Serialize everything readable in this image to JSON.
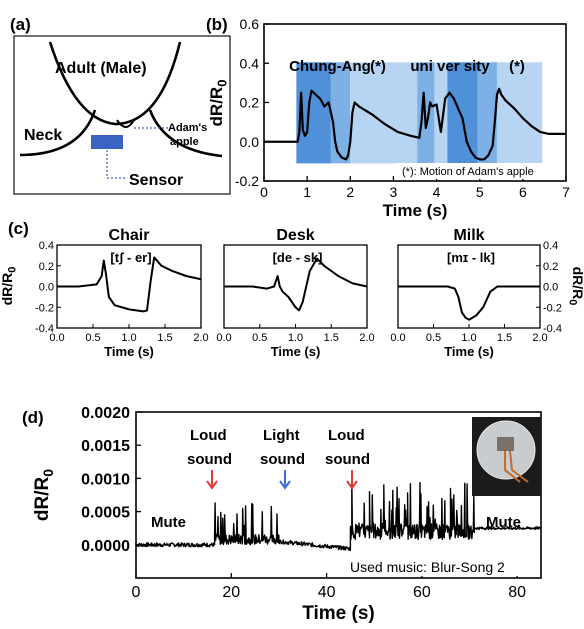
{
  "figure": {
    "panels": {
      "a": {
        "label": "(a)",
        "texts": {
          "adult": "Adult (Male)",
          "neck": "Neck",
          "adams": "Adam's",
          "apple": "apple",
          "sensor": "Sensor"
        }
      },
      "b": {
        "label": "(b)",
        "words": [
          "Chung-Ang",
          "(*)",
          "uni ver sity",
          "(*)"
        ],
        "note": "(*): Motion of Adam's apple"
      },
      "c": {
        "label": "(c)"
      },
      "d": {
        "label": "(d)",
        "annotations": {
          "loud1": [
            "Loud",
            "sound"
          ],
          "light": [
            "Light",
            "sound"
          ],
          "loud2": [
            "Loud",
            "sound"
          ],
          "mute_left": "Mute",
          "mute_right": "Mute",
          "music": "Used music: Blur-Song 2"
        },
        "colors": {
          "loud": "#e53935",
          "light": "#3f6fd8",
          "mute": "#7ab648"
        }
      }
    }
  },
  "chart_data": [
    {
      "panel": "b",
      "type": "line",
      "xlabel": "Time (s)",
      "ylabel": "dR/R0",
      "xlim": [
        0,
        7
      ],
      "ylim": [
        -0.2,
        0.6
      ],
      "xticks": [
        0,
        1,
        2,
        3,
        4,
        5,
        6,
        7
      ],
      "yticks": [
        -0.2,
        0.0,
        0.2,
        0.4,
        0.6
      ],
      "series": [
        {
          "x": [
            0,
            0.5,
            0.78,
            0.82,
            0.86,
            0.9,
            0.95,
            1.0,
            1.05,
            1.1,
            1.2,
            1.3,
            1.4,
            1.5,
            1.6,
            1.65,
            1.7,
            1.8,
            1.9,
            1.95,
            2.0,
            2.05,
            2.1,
            2.2,
            2.5,
            2.8,
            3.1,
            3.4,
            3.6,
            3.65,
            3.7,
            3.75,
            3.8,
            3.85,
            3.9,
            4.0,
            4.1,
            4.2,
            4.3,
            4.4,
            4.5,
            4.6,
            4.7,
            4.8,
            4.9,
            5.0,
            5.1,
            5.2,
            5.3,
            5.35,
            5.4,
            5.45,
            5.5,
            5.6,
            5.8,
            6.0,
            6.2,
            6.4,
            6.6,
            7.0
          ],
          "y": [
            0.0,
            0.0,
            0.0,
            0.05,
            0.25,
            0.06,
            0.03,
            0.05,
            0.2,
            0.26,
            0.24,
            0.22,
            0.18,
            0.2,
            0.1,
            0.0,
            -0.05,
            -0.08,
            -0.09,
            -0.07,
            0.0,
            0.15,
            0.2,
            0.18,
            0.14,
            0.09,
            0.05,
            0.03,
            0.02,
            0.1,
            0.25,
            0.07,
            0.12,
            0.2,
            0.18,
            0.19,
            0.05,
            0.22,
            0.25,
            0.22,
            0.17,
            0.12,
            0.0,
            -0.05,
            -0.08,
            -0.09,
            -0.09,
            -0.07,
            -0.02,
            0.1,
            0.24,
            0.27,
            0.24,
            0.21,
            0.17,
            0.12,
            0.08,
            0.05,
            0.04,
            0.04
          ]
        }
      ],
      "regions": [
        {
          "x": [
            0.75,
            1.55
          ],
          "shade": "dark"
        },
        {
          "x": [
            1.55,
            2.0
          ],
          "shade": "medium"
        },
        {
          "x": [
            2.0,
            3.55
          ],
          "shade": "light"
        },
        {
          "x": [
            3.55,
            3.95
          ],
          "shade": "medium"
        },
        {
          "x": [
            3.95,
            4.25
          ],
          "shade": "light"
        },
        {
          "x": [
            4.25,
            4.95
          ],
          "shade": "dark"
        },
        {
          "x": [
            4.95,
            5.4
          ],
          "shade": "medium"
        },
        {
          "x": [
            5.4,
            6.45
          ],
          "shade": "light"
        }
      ]
    },
    {
      "panel": "c1",
      "type": "line",
      "title": "Chair",
      "phonetic": "[tʃ    -    er]",
      "xlabel": "Time (s)",
      "ylabel": "dR/R0",
      "xlim": [
        0,
        2
      ],
      "ylim": [
        -0.4,
        0.4
      ],
      "xticks": [
        0.0,
        0.5,
        1.0,
        1.5,
        2.0
      ],
      "yticks": [
        -0.4,
        -0.2,
        0.0,
        0.2,
        0.4
      ],
      "series": [
        {
          "x": [
            0,
            0.3,
            0.55,
            0.62,
            0.65,
            0.68,
            0.72,
            0.8,
            0.9,
            1.0,
            1.1,
            1.2,
            1.25,
            1.3,
            1.35,
            1.45,
            1.6,
            1.8,
            2.0
          ],
          "y": [
            0.0,
            0.0,
            0.02,
            0.1,
            0.25,
            0.12,
            -0.1,
            -0.18,
            -0.2,
            -0.22,
            -0.23,
            -0.24,
            -0.23,
            0.05,
            0.28,
            0.2,
            0.15,
            0.1,
            0.07
          ]
        }
      ]
    },
    {
      "panel": "c2",
      "type": "line",
      "title": "Desk",
      "phonetic": "[de  -  sk]",
      "xlabel": "Time (s)",
      "xlim": [
        0,
        2
      ],
      "ylim": [
        -0.4,
        0.4
      ],
      "xticks": [
        0.0,
        0.5,
        1.0,
        1.5,
        2.0
      ],
      "series": [
        {
          "x": [
            0,
            0.4,
            0.6,
            0.7,
            0.75,
            0.78,
            0.82,
            0.9,
            1.0,
            1.05,
            1.1,
            1.2,
            1.3,
            1.4,
            1.6,
            1.8,
            2.0
          ],
          "y": [
            0.0,
            0.0,
            -0.02,
            0.0,
            0.1,
            0.0,
            -0.05,
            -0.1,
            -0.2,
            -0.23,
            -0.15,
            0.15,
            0.27,
            0.2,
            0.1,
            0.03,
            0.0
          ]
        }
      ]
    },
    {
      "panel": "c3",
      "type": "line",
      "title": "Milk",
      "phonetic": "[mɪ  -  lk]",
      "xlabel": "Time (s)",
      "ylabel": "dR/R0",
      "xlim": [
        0,
        2
      ],
      "ylim": [
        -0.4,
        0.4
      ],
      "xticks": [
        0.0,
        0.5,
        1.0,
        1.5,
        2.0
      ],
      "yticks": [
        -0.4,
        -0.2,
        0.0,
        0.2,
        0.4
      ],
      "series": [
        {
          "x": [
            0,
            0.5,
            0.7,
            0.8,
            0.85,
            0.9,
            0.95,
            1.0,
            1.1,
            1.2,
            1.3,
            1.4,
            1.6,
            1.8,
            2.0
          ],
          "y": [
            0.0,
            0.0,
            0.0,
            -0.02,
            -0.1,
            -0.25,
            -0.3,
            -0.32,
            -0.28,
            -0.2,
            -0.05,
            0.0,
            0.0,
            0.0,
            0.0
          ]
        }
      ]
    },
    {
      "panel": "d",
      "type": "line",
      "xlabel": "Time (s)",
      "ylabel": "dR/R0",
      "xlim": [
        0,
        85
      ],
      "ylim": [
        -0.0005,
        0.002
      ],
      "xticks": [
        0,
        20,
        40,
        60,
        80
      ],
      "yticks": [
        "0.0000",
        "0.0005",
        "0.0010",
        "0.0015",
        "0.0020"
      ],
      "segments": [
        {
          "x": [
            0,
            16.5
          ],
          "base": 0.0,
          "amp": 3e-05
        },
        {
          "x": [
            16.5,
            30
          ],
          "base": 8e-05,
          "amp": 8e-05,
          "spike": 0.0007
        },
        {
          "x": [
            30,
            45
          ],
          "base": 5e-05,
          "end": -6e-05,
          "amp": 3e-05
        },
        {
          "x": [
            45,
            71
          ],
          "base": 0.0002,
          "amp": 0.00012,
          "spike": 0.00095
        },
        {
          "x": [
            71,
            85
          ],
          "base": 0.00025,
          "amp": 2e-05
        }
      ],
      "spikes": [
        [
          45.3,
          0.00102
        ],
        [
          52,
          0.0009
        ],
        [
          57,
          0.00078
        ],
        [
          66,
          0.00085
        ],
        [
          49,
          0.0008
        ]
      ]
    }
  ]
}
